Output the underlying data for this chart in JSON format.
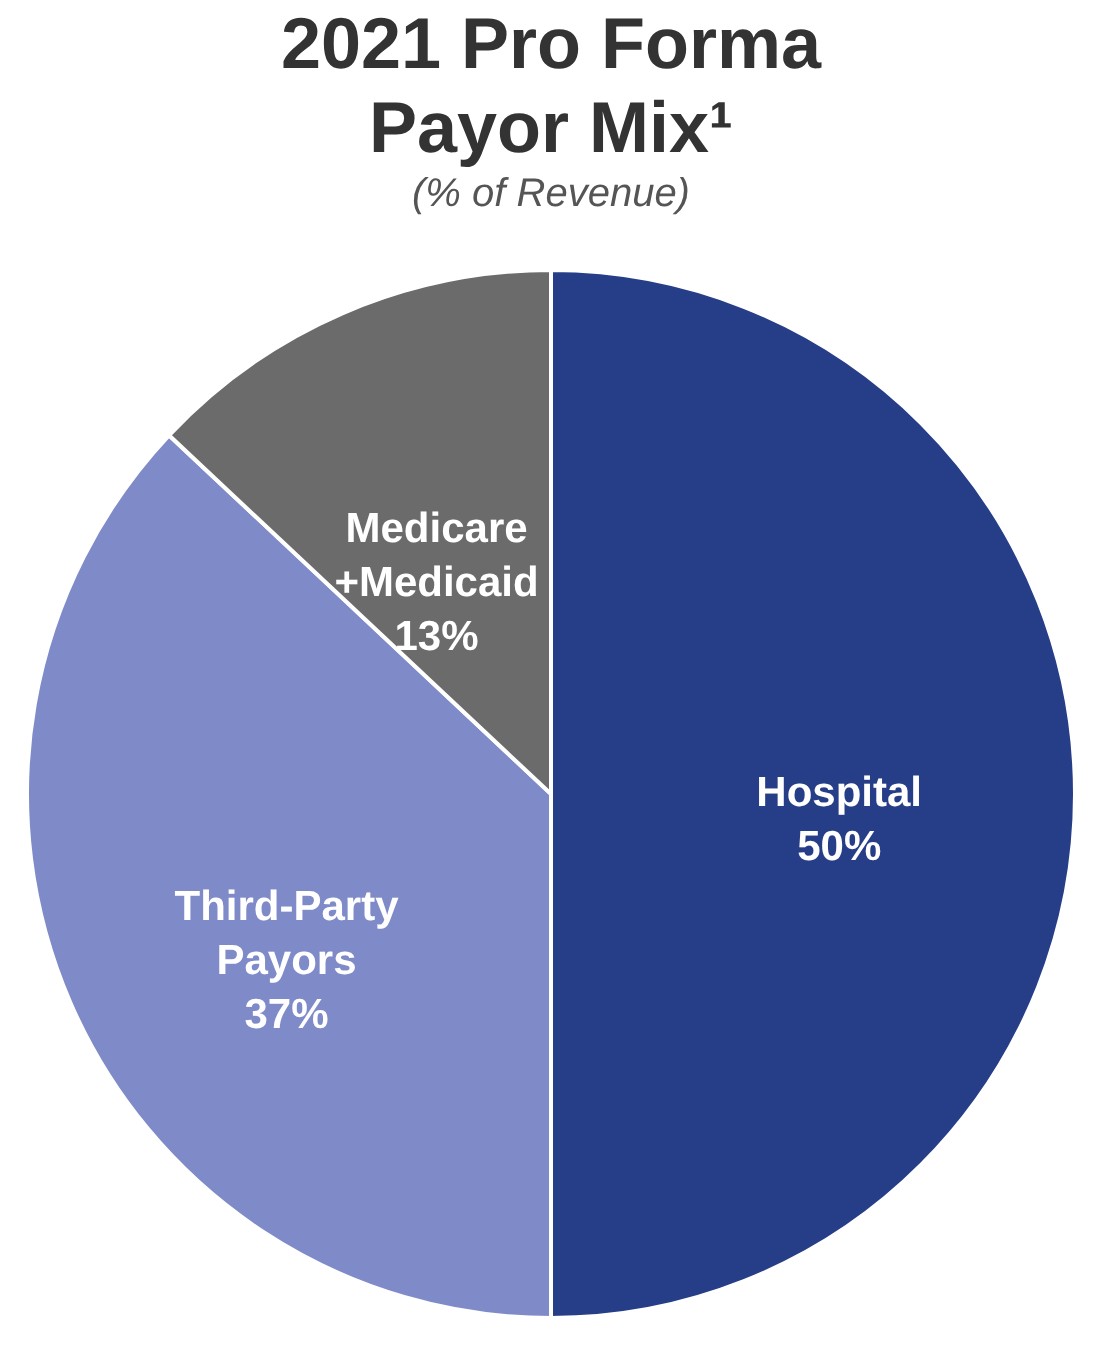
{
  "chart_data": {
    "type": "pie",
    "title": [
      "2021 Pro Forma",
      "Payor Mix¹"
    ],
    "subtitle": "(% of Revenue)",
    "categories": [
      "Hospital",
      "Third-Party Payors",
      "Medicare +Medicaid"
    ],
    "values": [
      50,
      37,
      13
    ],
    "colors": [
      "#263d87",
      "#7f8bc8",
      "#6b6b6b"
    ],
    "value_labels": [
      "50%",
      "37%",
      "13%"
    ],
    "legend": false
  }
}
